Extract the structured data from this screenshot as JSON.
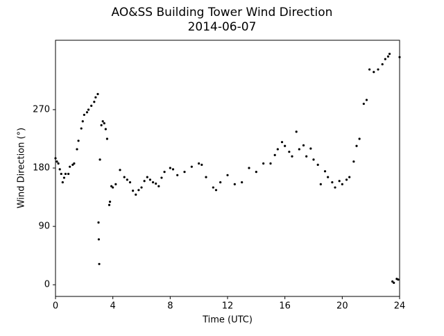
{
  "chart_data": {
    "type": "scatter",
    "title": "AO&SS Building Tower Wind Direction",
    "subtitle": "2014-06-07",
    "xlabel": "Time (UTC)",
    "ylabel": "Wind Direction (°)",
    "color": "#000000",
    "x": [
      0.0,
      0.1,
      0.2,
      0.3,
      0.4,
      0.5,
      0.6,
      0.7,
      0.9,
      1.0,
      1.2,
      1.3,
      1.5,
      1.6,
      1.8,
      1.9,
      2.0,
      2.2,
      2.3,
      2.5,
      2.7,
      2.8,
      2.95,
      3.0,
      3.02,
      3.05,
      3.1,
      3.2,
      3.3,
      3.4,
      3.5,
      3.6,
      3.75,
      3.8,
      3.9,
      4.0,
      4.2,
      4.5,
      4.8,
      5.0,
      5.2,
      5.4,
      5.6,
      5.8,
      6.0,
      6.2,
      6.4,
      6.6,
      6.8,
      7.0,
      7.2,
      7.4,
      7.6,
      8.0,
      8.2,
      8.5,
      9.0,
      9.5,
      10.0,
      10.2,
      10.5,
      11.0,
      11.2,
      11.5,
      12.0,
      12.5,
      13.0,
      13.5,
      14.0,
      14.5,
      15.0,
      15.3,
      15.5,
      15.8,
      16.0,
      16.3,
      16.5,
      16.8,
      17.0,
      17.3,
      17.5,
      17.8,
      18.0,
      18.3,
      18.5,
      18.8,
      19.0,
      19.3,
      19.5,
      19.8,
      20.0,
      20.3,
      20.5,
      20.8,
      21.0,
      21.2,
      21.5,
      21.7,
      21.9,
      22.2,
      22.5,
      22.8,
      23.0,
      23.2,
      23.3,
      23.5,
      23.6,
      23.8,
      23.9,
      24.0
    ],
    "values": [
      195,
      190,
      187,
      178,
      171,
      158,
      165,
      171,
      171,
      182,
      185,
      187,
      209,
      222,
      241,
      252,
      262,
      266,
      270,
      276,
      282,
      289,
      294,
      96,
      70,
      32,
      193,
      246,
      252,
      249,
      240,
      225,
      123,
      128,
      152,
      150,
      155,
      177,
      166,
      162,
      158,
      145,
      139,
      146,
      150,
      160,
      166,
      162,
      158,
      156,
      152,
      165,
      174,
      180,
      178,
      169,
      174,
      182,
      187,
      185,
      166,
      150,
      146,
      158,
      169,
      155,
      158,
      180,
      174,
      187,
      187,
      200,
      209,
      220,
      214,
      205,
      198,
      236,
      209,
      215,
      198,
      210,
      193,
      185,
      155,
      175,
      166,
      158,
      150,
      160,
      155,
      162,
      166,
      190,
      214,
      225,
      279,
      285,
      332,
      328,
      332,
      340,
      348,
      352,
      356,
      5,
      3,
      9,
      8,
      351
    ],
    "xlim": [
      0,
      24
    ],
    "xticks": [
      0,
      4,
      8,
      12,
      16,
      20,
      24
    ],
    "ylim": [
      -18,
      377
    ],
    "yticks": [
      0,
      90,
      180,
      270
    ]
  }
}
